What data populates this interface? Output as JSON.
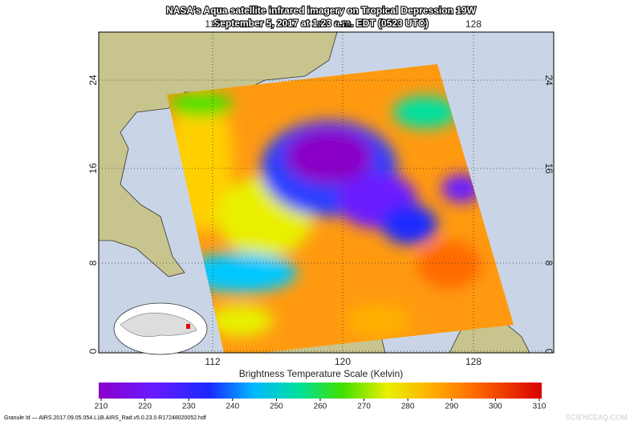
{
  "title": "NASA's Aqua satellite infrared imagery on Tropical Depression 19W",
  "subtitle": "September 5, 2017 at 1:23 a.m. EDT (0523 UTC)",
  "map": {
    "lon_labels": [
      "112",
      "120",
      "128"
    ],
    "lat_labels": [
      "24",
      "16",
      "8",
      "0"
    ]
  },
  "colorbar": {
    "label": "Brightness Temperature Scale (Kelvin)",
    "ticks": [
      210,
      220,
      230,
      240,
      250,
      260,
      270,
      280,
      290,
      300,
      310
    ]
  },
  "footer": {
    "granule": "Granule Id — AIRS.2017.09.05.054.L1B.AIRS_Rad.v5.0.23.0.R17248020052.hdf",
    "watermark": "SCIENCEAQ.COM"
  }
}
